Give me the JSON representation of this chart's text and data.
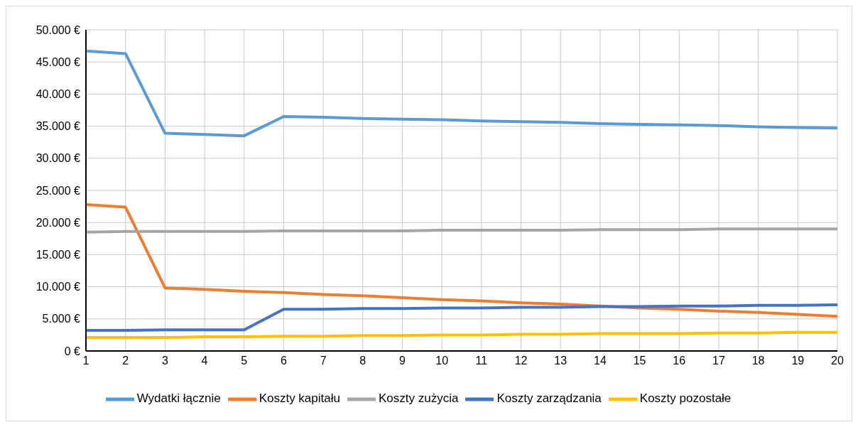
{
  "chart_data": {
    "type": "line",
    "x": [
      1,
      2,
      3,
      4,
      5,
      6,
      7,
      8,
      9,
      10,
      11,
      12,
      13,
      14,
      15,
      16,
      17,
      18,
      19,
      20
    ],
    "xlim": [
      1,
      20
    ],
    "xticks": [
      1,
      2,
      3,
      4,
      5,
      6,
      7,
      8,
      9,
      10,
      11,
      12,
      13,
      14,
      15,
      16,
      17,
      18,
      19,
      20
    ],
    "ylim": [
      0,
      50000
    ],
    "yticks": [
      {
        "value": 0,
        "label": "0 €"
      },
      {
        "value": 5000,
        "label": "5.000 €"
      },
      {
        "value": 10000,
        "label": "10.000 €"
      },
      {
        "value": 15000,
        "label": "15.000 €"
      },
      {
        "value": 20000,
        "label": "20.000 €"
      },
      {
        "value": 25000,
        "label": "25.000 €"
      },
      {
        "value": 30000,
        "label": "30.000 €"
      },
      {
        "value": 35000,
        "label": "35.000 €"
      },
      {
        "value": 40000,
        "label": "40.000 €"
      },
      {
        "value": 45000,
        "label": "45.000 €"
      },
      {
        "value": 50000,
        "label": "50.000 €"
      }
    ],
    "grid": true,
    "legend": "bottom",
    "line_style": "solid",
    "series": [
      {
        "name": "Wydatki łącznie",
        "color": "#5b9bd5",
        "values": [
          46700,
          46300,
          33900,
          33700,
          33500,
          36500,
          36400,
          36200,
          36100,
          36000,
          35800,
          35700,
          35600,
          35400,
          35300,
          35200,
          35100,
          34900,
          34800,
          34700
        ]
      },
      {
        "name": "Koszty kapitału",
        "color": "#ed7d31",
        "values": [
          22800,
          22400,
          9800,
          9600,
          9300,
          9100,
          8800,
          8600,
          8300,
          8000,
          7800,
          7500,
          7300,
          7000,
          6700,
          6500,
          6200,
          6000,
          5700,
          5400
        ]
      },
      {
        "name": "Koszty zużycia",
        "color": "#a5a5a5",
        "values": [
          18500,
          18600,
          18600,
          18600,
          18600,
          18700,
          18700,
          18700,
          18700,
          18800,
          18800,
          18800,
          18800,
          18900,
          18900,
          18900,
          19000,
          19000,
          19000,
          19000
        ]
      },
      {
        "name": "Koszty zarządzania",
        "color": "#4472c4",
        "values": [
          3200,
          3200,
          3300,
          3300,
          3300,
          6500,
          6500,
          6600,
          6600,
          6700,
          6700,
          6800,
          6800,
          6900,
          6900,
          7000,
          7000,
          7100,
          7100,
          7200
        ]
      },
      {
        "name": "Koszty pozostałe",
        "color": "#ffc000",
        "values": [
          2100,
          2100,
          2100,
          2200,
          2200,
          2300,
          2300,
          2400,
          2400,
          2500,
          2500,
          2600,
          2600,
          2700,
          2700,
          2700,
          2800,
          2800,
          2900,
          2900
        ]
      }
    ]
  }
}
